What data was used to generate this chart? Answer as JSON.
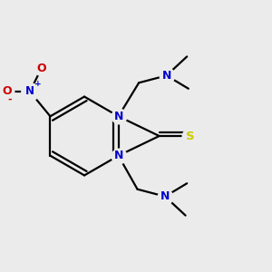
{
  "bg_color": "#ebebeb",
  "atom_colors": {
    "C": "#000000",
    "N": "#0000cc",
    "O": "#cc0000",
    "S": "#cccc00"
  },
  "line_color": "#000000",
  "line_width": 1.6,
  "figsize": [
    3.0,
    3.0
  ],
  "dpi": 100,
  "xlim": [
    0.05,
    0.95
  ],
  "ylim": [
    0.05,
    0.95
  ]
}
